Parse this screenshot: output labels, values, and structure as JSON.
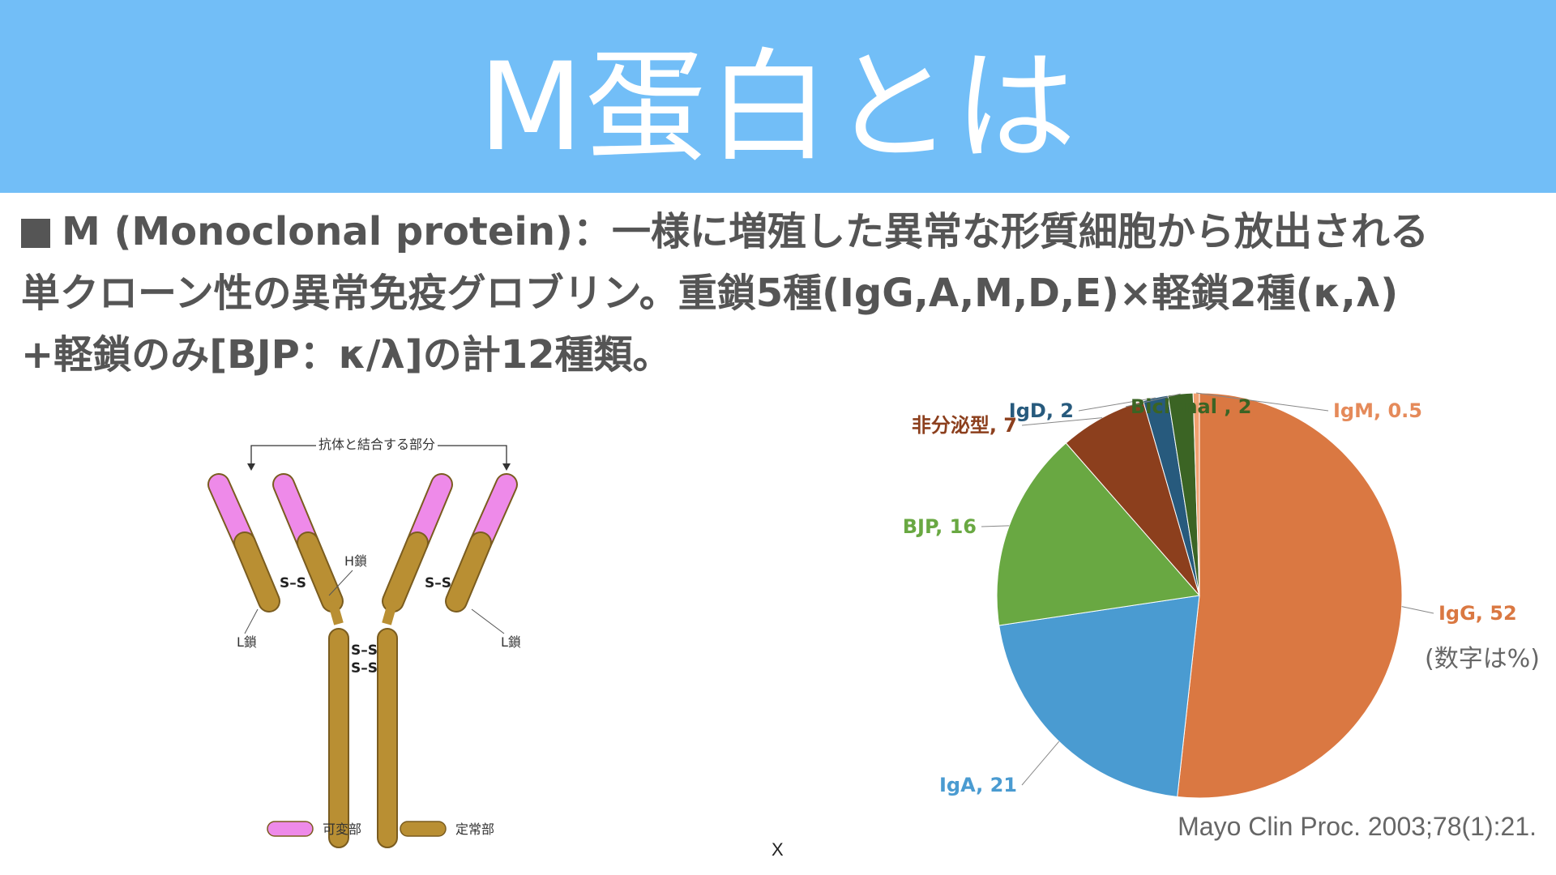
{
  "header": {
    "title": "M蛋白とは"
  },
  "description": {
    "line1": "M (Monoclonal protein)：一様に増殖した異常な形質細胞から放出される",
    "line2": "単クローン性の異常免疫グロブリン。重鎖5種(IgG,A,M,D,E)×軽鎖2種(κ,λ)",
    "line3": "+軽鎖のみ[BJP：κ/λ]の計12種類。"
  },
  "antibody_diagram": {
    "binding_label": "抗体と結合する部分",
    "heavy_chain_label": "H鎖",
    "light_chain_left_label": "L鎖",
    "light_chain_right_label": "L鎖",
    "disulfide_label": "S–S",
    "legend": {
      "variable_label": "可変部",
      "constant_label": "定常部"
    },
    "colors": {
      "variable": "#ee8ae9",
      "constant": "#b98f33"
    }
  },
  "chart_data": {
    "type": "pie",
    "title": "",
    "note": "(数字は%)",
    "slices": [
      {
        "label": "IgG",
        "value": 52,
        "display": "IgG, 52",
        "color": "#da7842",
        "labelColor": "#da7842"
      },
      {
        "label": "IgA",
        "value": 21,
        "display": "IgA, 21",
        "color": "#4a9bd1",
        "labelColor": "#4a9bd1"
      },
      {
        "label": "BJP",
        "value": 16,
        "display": "BJP, 16",
        "color": "#69a842",
        "labelColor": "#69a842"
      },
      {
        "label": "非分泌型",
        "value": 7,
        "display": "非分泌型, 7",
        "color": "#8c3f1d",
        "labelColor": "#8c3f1d"
      },
      {
        "label": "IgD",
        "value": 2,
        "display": "IgD, 2",
        "color": "#275a7d",
        "labelColor": "#275a7d"
      },
      {
        "label": "Biclonal",
        "value": 2,
        "display": "Biclonal , 2",
        "color": "#3b6424",
        "labelColor": "#3b6424"
      },
      {
        "label": "IgM",
        "value": 0.5,
        "display": "IgM, 0.5",
        "color": "#f0a070",
        "labelColor": "#e58a5a"
      }
    ]
  },
  "citation": "Mayo Clin Proc. 2003;78(1):21.",
  "footer_mark": "X"
}
